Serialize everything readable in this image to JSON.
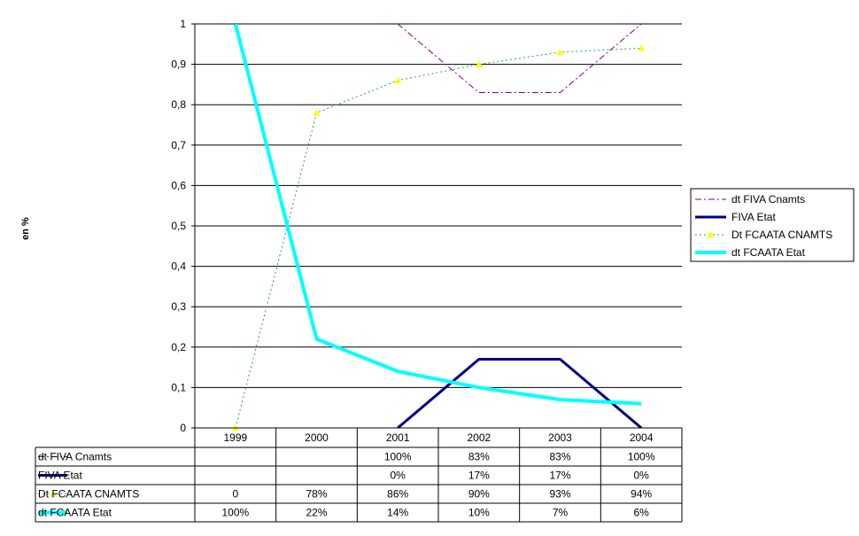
{
  "chart_data": {
    "type": "line",
    "title": "",
    "ylabel": "en %",
    "xlabel": "",
    "ylim": [
      0,
      1
    ],
    "yticks": [
      "0",
      "0,1",
      "0,2",
      "0,3",
      "0,4",
      "0,5",
      "0,6",
      "0,7",
      "0,8",
      "0,9",
      "1"
    ],
    "categories": [
      "1999",
      "2000",
      "2001",
      "2002",
      "2003",
      "2004"
    ],
    "grid": true,
    "legend_position": "right",
    "series": [
      {
        "name": "dt FIVA Cnamts",
        "values": [
          null,
          null,
          1.0,
          0.83,
          0.83,
          1.0
        ],
        "labels": [
          "",
          "",
          "100%",
          "83%",
          "83%",
          "100%"
        ],
        "color": "#800080",
        "style": "dash-dot",
        "marker": "none"
      },
      {
        "name": "FIVA Etat",
        "values": [
          null,
          null,
          0.0,
          0.17,
          0.17,
          0.0
        ],
        "labels": [
          "",
          "",
          "0%",
          "17%",
          "17%",
          "0%"
        ],
        "color": "#000080",
        "style": "solid-thick",
        "marker": "none"
      },
      {
        "name": "Dt FCAATA CNAMTS",
        "values": [
          0.0,
          0.78,
          0.86,
          0.9,
          0.93,
          0.94
        ],
        "labels": [
          "0",
          "78%",
          "86%",
          "90%",
          "93%",
          "94%"
        ],
        "color": "#339966",
        "style": "dotted",
        "marker": "triangle",
        "marker_color": "#ffff00"
      },
      {
        "name": "dt FCAATA Etat",
        "values": [
          1.0,
          0.22,
          0.14,
          0.1,
          0.07,
          0.06
        ],
        "labels": [
          "100%",
          "22%",
          "14%",
          "10%",
          "7%",
          "6%"
        ],
        "color": "#00ffff",
        "style": "solid-thick",
        "marker": "none"
      }
    ]
  }
}
